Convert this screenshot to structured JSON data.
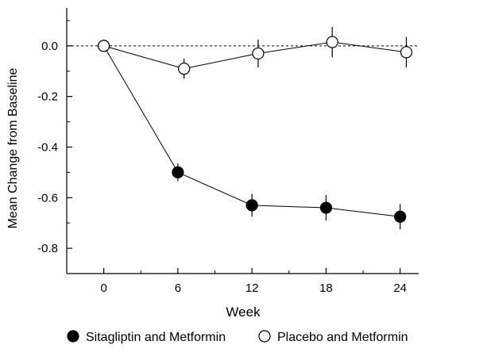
{
  "chart_data": {
    "type": "line",
    "xlabel": "Week",
    "ylabel": "Mean Change from Baseline",
    "xlim": [
      -3,
      25.5
    ],
    "ylim": [
      -0.9,
      0.15
    ],
    "xticks": [
      0,
      6,
      12,
      18,
      24
    ],
    "xtick_labels": [
      "0",
      "6",
      "12",
      "18",
      "24"
    ],
    "yticks": [
      0.0,
      -0.2,
      -0.4,
      -0.6,
      -0.8
    ],
    "ytick_labels": [
      "0.0",
      "-0.2",
      "-0.4",
      "-0.6",
      "-0.8"
    ],
    "reference_line": 0,
    "legend_position": "bottom",
    "series": [
      {
        "name": "Sitagliptin and Metformin",
        "marker": "filled-circle",
        "color": "#000000",
        "points": [
          {
            "x": 0,
            "y": 0.0,
            "err": 0.0
          },
          {
            "x": 6,
            "y": -0.5,
            "err": 0.035
          },
          {
            "x": 12,
            "y": -0.63,
            "err": 0.045
          },
          {
            "x": 18,
            "y": -0.64,
            "err": 0.05
          },
          {
            "x": 24,
            "y": -0.675,
            "err": 0.05
          }
        ]
      },
      {
        "name": "Placebo and Metformin",
        "marker": "open-circle",
        "color": "#000000",
        "points": [
          {
            "x": 0,
            "y": 0.0,
            "err": 0.0
          },
          {
            "x": 6.5,
            "y": -0.09,
            "err": 0.04
          },
          {
            "x": 12.5,
            "y": -0.03,
            "err": 0.055
          },
          {
            "x": 18.5,
            "y": 0.015,
            "err": 0.06
          },
          {
            "x": 24.5,
            "y": -0.025,
            "err": 0.06
          }
        ]
      }
    ]
  }
}
